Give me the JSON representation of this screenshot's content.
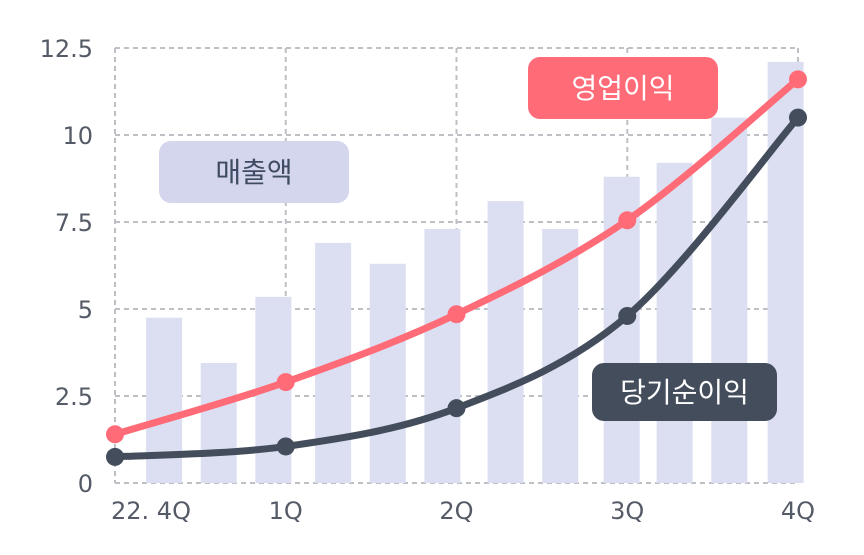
{
  "chart_data": {
    "type": "bar",
    "title": "",
    "xlabel": "",
    "ylabel": "",
    "ylim": [
      0,
      12.5
    ],
    "yticks": [
      "0",
      "2.5",
      "5",
      "7.5",
      "10",
      "12.5"
    ],
    "ytick_values": [
      0,
      2.5,
      5,
      7.5,
      10,
      12.5
    ],
    "xtick_labels": [
      "22. 4Q",
      "1Q",
      "2Q",
      "3Q",
      "4Q"
    ],
    "xtick_positions": [
      0,
      1,
      2,
      3,
      4
    ],
    "grid": true,
    "bars": {
      "name": "매출액",
      "color": "#dcdff2",
      "x": [
        0.1,
        0.42,
        0.74,
        1.09,
        1.41,
        1.73,
        2.1,
        2.42,
        2.78,
        3.09,
        3.41,
        3.74
      ],
      "values": [
        4.75,
        3.45,
        5.35,
        6.9,
        6.3,
        7.3,
        8.1,
        7.3,
        8.8,
        9.2,
        10.5,
        12.1
      ]
    },
    "lines": [
      {
        "name": "영업이익",
        "color": "#ff6b77",
        "x": [
          0,
          1,
          2,
          3,
          4
        ],
        "values": [
          1.4,
          2.9,
          4.85,
          7.55,
          11.6
        ]
      },
      {
        "name": "당기순이익",
        "color": "#434d5c",
        "x": [
          0,
          1,
          2,
          3,
          4
        ],
        "values": [
          0.75,
          1.05,
          2.15,
          4.8,
          10.5
        ]
      }
    ],
    "labels": [
      {
        "text": "매출액",
        "bg": "#d3d6ec",
        "fg": "#3f4a63"
      },
      {
        "text": "영업이익",
        "bg": "#ff6b77",
        "fg": "#ffffff"
      },
      {
        "text": "당기순이익",
        "bg": "#434d5c",
        "fg": "#ffffff"
      }
    ]
  }
}
